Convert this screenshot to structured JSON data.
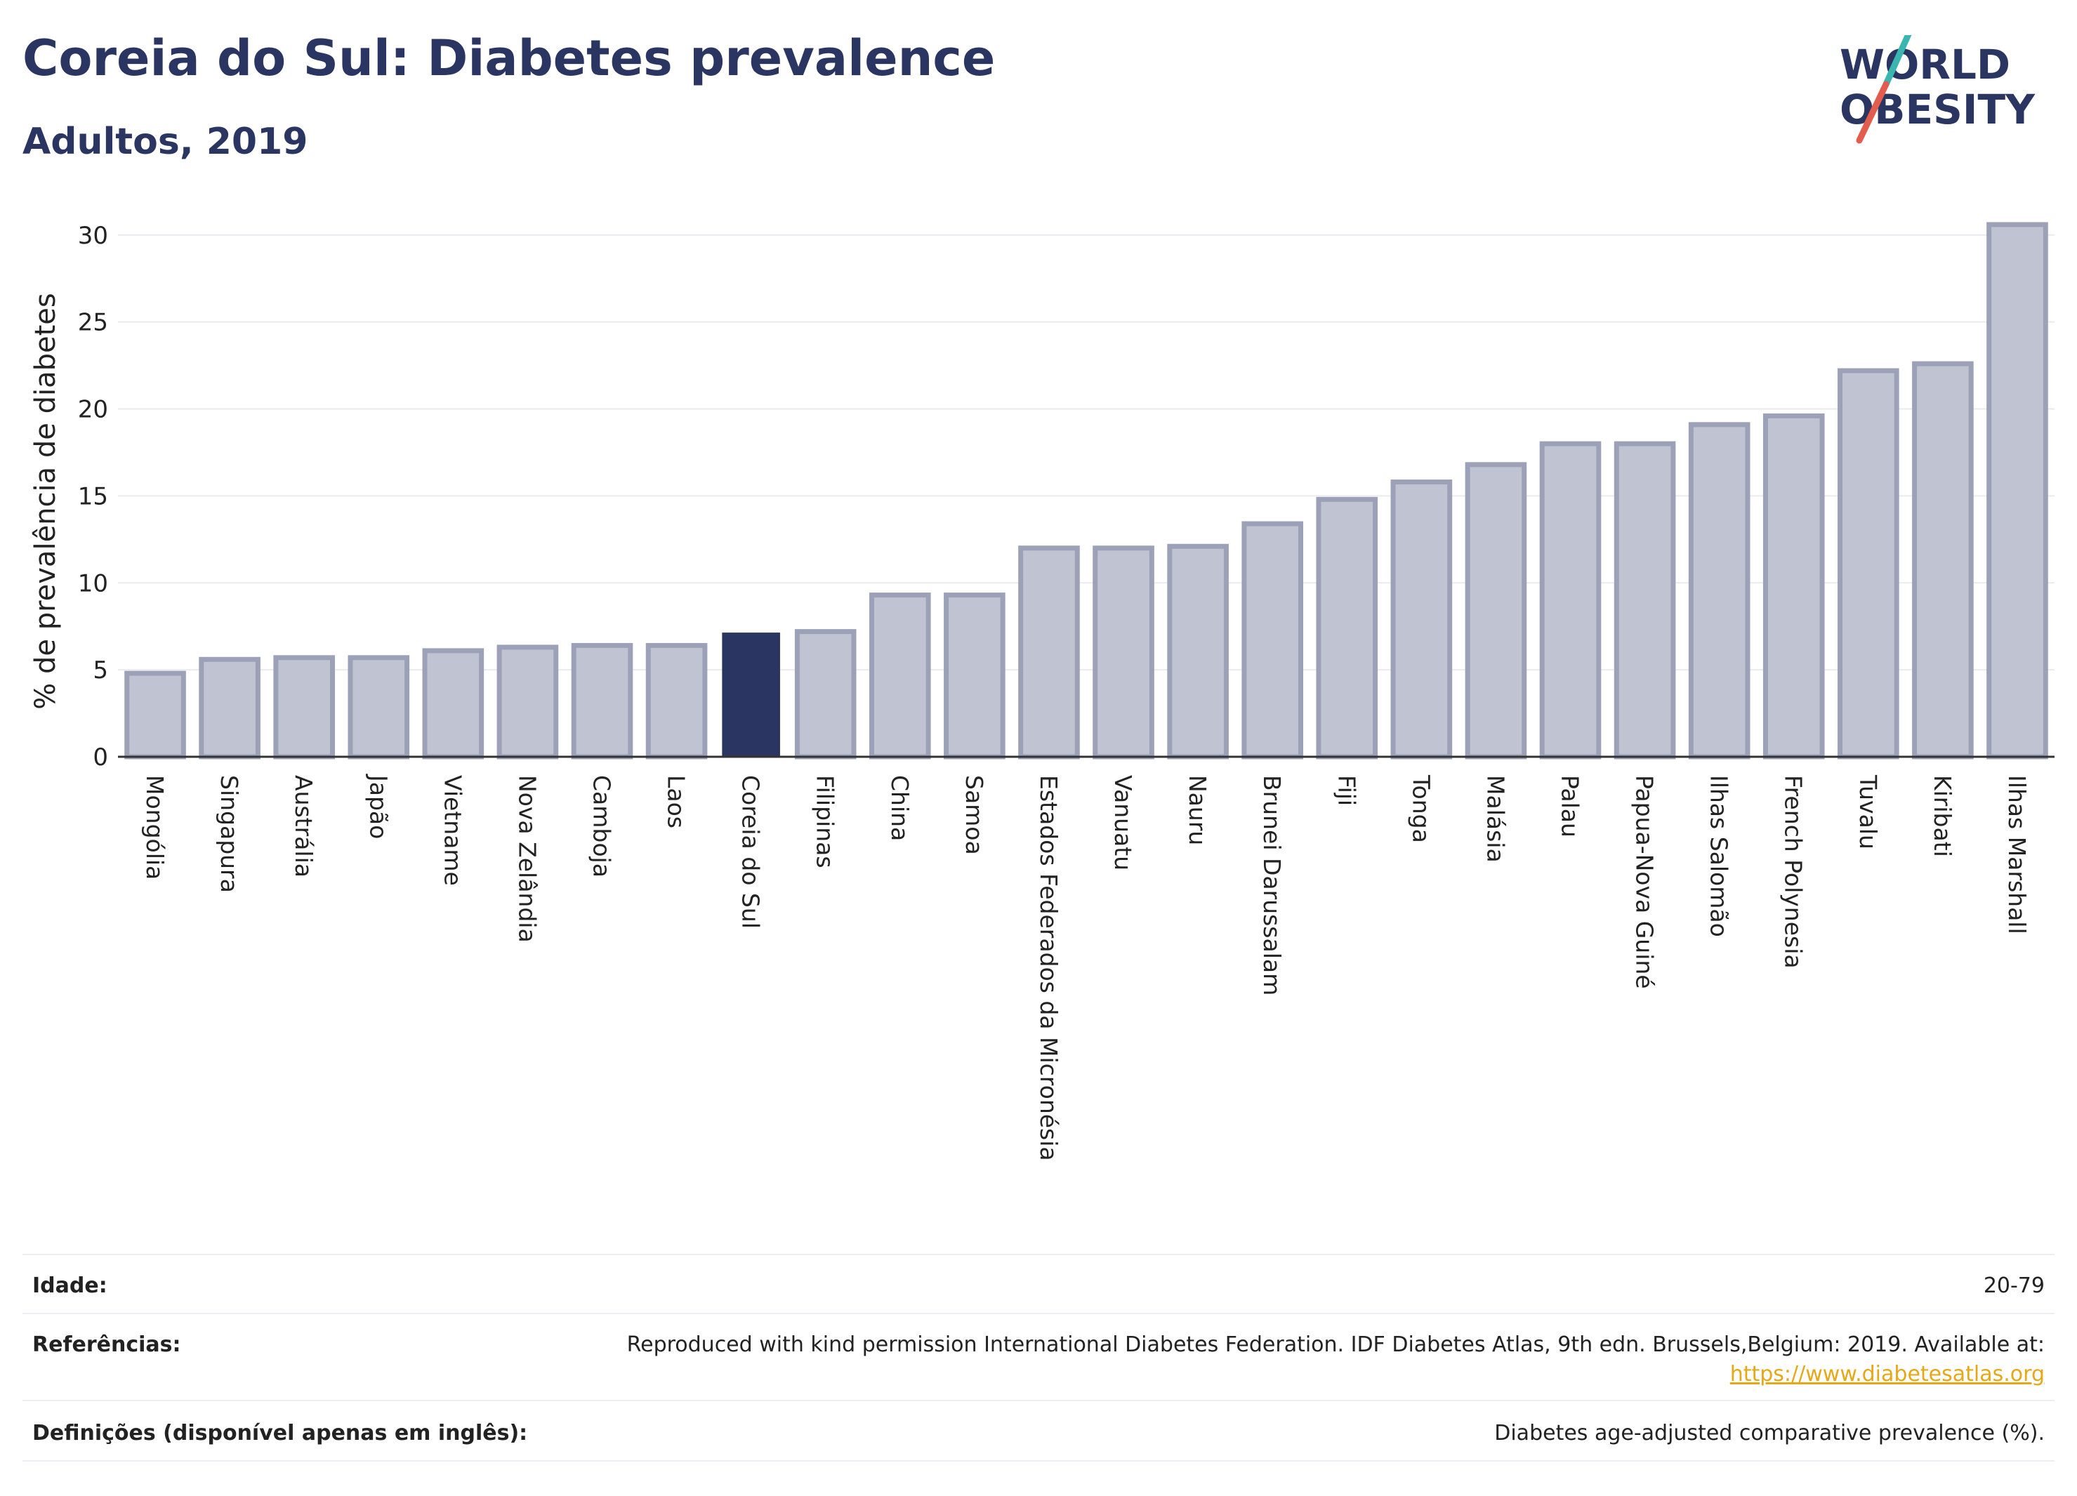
{
  "header": {
    "title": "Coreia do Sul: Diabetes prevalence",
    "subtitle": "Adultos, 2019"
  },
  "logo": {
    "line1": "WORLD",
    "line2": "OBESITY",
    "colors": {
      "text": "#2b3561",
      "slash_teal": "#3ab5b0",
      "slash_red": "#e35d4f"
    }
  },
  "chart_data": {
    "type": "bar",
    "title": "",
    "xlabel": "",
    "ylabel": "% de prevalência de diabetes",
    "ylim": [
      0,
      31
    ],
    "yticks": [
      0,
      5,
      10,
      15,
      20,
      25,
      30
    ],
    "grid": true,
    "categories": [
      "Mongólia",
      "Singapura",
      "Austrália",
      "Japão",
      "Vietname",
      "Nova Zelândia",
      "Camboja",
      "Laos",
      "Coreia do Sul",
      "Filipinas",
      "China",
      "Samoa",
      "Estados Federados da Micronésia",
      "Vanuatu",
      "Nauru",
      "Brunei Darussalam",
      "Fiji",
      "Tonga",
      "Malásia",
      "Palau",
      "Papua-Nova Guiné",
      "Ilhas Salomão",
      "French Polynesia",
      "Tuvalu",
      "Kiribati",
      "Ilhas Marshall"
    ],
    "values": [
      4.8,
      5.6,
      5.7,
      5.7,
      6.1,
      6.3,
      6.4,
      6.4,
      7.1,
      7.2,
      9.3,
      9.3,
      12.0,
      12.0,
      12.1,
      13.4,
      14.8,
      15.8,
      16.8,
      18.0,
      18.0,
      19.1,
      19.6,
      22.2,
      22.6,
      30.6
    ],
    "highlight": "Coreia do Sul",
    "colors": {
      "bar": "#c0c3d1",
      "bar_border": "#9da1b8",
      "highlight": "#2b3561",
      "grid": "#eaeaef",
      "axis": "#333333"
    }
  },
  "info": {
    "rows": [
      {
        "key": "Idade:",
        "value": "20-79"
      },
      {
        "key": "Referências:",
        "value": "Reproduced with kind permission International Diabetes Federation. IDF Diabetes Atlas, 9th edn. Brussels,Belgium: 2019. Available at:",
        "link": "https://www.diabetesatlas.org"
      },
      {
        "key": "Definições (disponível apenas em inglês):",
        "value": "Diabetes age-adjusted comparative prevalence (%)."
      }
    ]
  }
}
